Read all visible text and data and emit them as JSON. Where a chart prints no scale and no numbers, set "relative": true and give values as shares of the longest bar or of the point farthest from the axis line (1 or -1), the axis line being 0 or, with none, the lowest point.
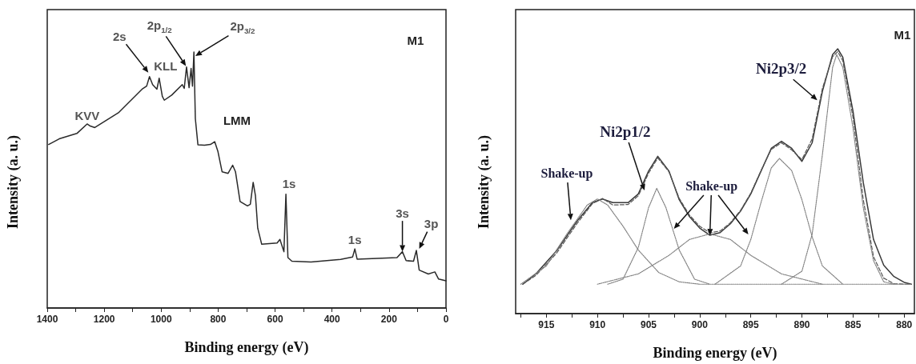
{
  "chart_data": [
    {
      "type": "line",
      "xlabel": "Binding energy (eV)",
      "ylabel": "Intensity (a. u.)",
      "relative": true,
      "marker": "none",
      "line_style": "solid",
      "xlim": [
        1400,
        0
      ],
      "xticks": [
        1400,
        {
          "value": 1300,
          "label": null
        },
        1200,
        {
          "value": 1100,
          "label": null
        },
        1000,
        {
          "value": 900,
          "label": null
        },
        800,
        {
          "value": 700,
          "label": null
        },
        600,
        {
          "value": 500,
          "label": null
        },
        400,
        {
          "value": 300,
          "label": null
        },
        200,
        {
          "value": 100,
          "label": null
        },
        0
      ],
      "x": [
        1395,
        1358,
        1296,
        1260,
        1249,
        1233,
        1150,
        1067,
        1051,
        1041,
        1030,
        1015,
        1007,
        996,
        989,
        963,
        926,
        919,
        911,
        902,
        895,
        890,
        885,
        880,
        871,
        848,
        827,
        812,
        801,
        786,
        765,
        749,
        739,
        723,
        697,
        687,
        677,
        669,
        661,
        647,
        593,
        583,
        569,
        562,
        555,
        541,
        474,
        370,
        328,
        320,
        312,
        172,
        153,
        140,
        114,
        104,
        94,
        62,
        39,
        26,
        0
      ],
      "series": [
        {
          "color": "#2a2a2a",
          "values": [
            0.639,
            0.661,
            0.682,
            0.719,
            0.711,
            0.705,
            0.763,
            0.855,
            0.867,
            0.904,
            0.873,
            0.855,
            0.898,
            0.827,
            0.812,
            0.832,
            0.873,
            0.858,
            0.942,
            0.861,
            0.936,
            0.867,
            1.0,
            0.74,
            0.638,
            0.636,
            0.639,
            0.65,
            0.613,
            0.532,
            0.526,
            0.558,
            0.532,
            0.416,
            0.399,
            0.405,
            0.491,
            0.439,
            0.312,
            0.249,
            0.254,
            0.268,
            0.22,
            0.445,
            0.197,
            0.183,
            0.18,
            0.19,
            0.199,
            0.231,
            0.191,
            0.197,
            0.22,
            0.185,
            0.183,
            0.225,
            0.148,
            0.133,
            0.141,
            0.113,
            0.106
          ]
        }
      ],
      "annotations": [
        {
          "text": "2s",
          "x": 1045,
          "y": 0.92
        },
        {
          "text": "KLL",
          "x": 1007,
          "y": 0.898
        },
        {
          "text": "2p$_{1/2}$",
          "x": 913,
          "y": 0.946
        },
        {
          "text": "2p$_{3/2}$",
          "x": 880,
          "y": 0.985
        },
        {
          "text": "KVV",
          "x": 1260,
          "y": 0.719
        },
        "LMM",
        {
          "text": "1s",
          "x": 562,
          "y": 0.445
        },
        {
          "text": "1s",
          "x": 320,
          "y": 0.231
        },
        {
          "text": "3s",
          "x": 153,
          "y": 0.22
        },
        {
          "text": "3p",
          "x": 94,
          "y": 0.231
        },
        "M1"
      ]
    },
    {
      "type": "line",
      "xlabel": "Binding energy (eV)",
      "ylabel": "Intensity (a. u.)",
      "relative": true,
      "marker": "none",
      "xlim": [
        918,
        879
      ],
      "xticks": [
        {
          "value": 917.5,
          "label": null
        },
        915,
        {
          "value": 912.5,
          "label": null
        },
        910,
        {
          "value": 907.5,
          "label": null
        },
        905,
        {
          "value": 902.5,
          "label": null
        },
        900,
        {
          "value": 897.5,
          "label": null
        },
        895,
        {
          "value": 892.5,
          "label": null
        },
        890,
        {
          "value": 887.5,
          "label": null
        },
        885,
        {
          "value": 882.5,
          "label": null
        },
        880
      ],
      "series": [
        {
          "color": "#3a3a3a",
          "line_style": "solid",
          "x": [
            917.3,
            916,
            914,
            912,
            910.5,
            909.5,
            908.5,
            907,
            906,
            905,
            904.1,
            903,
            902,
            901,
            900,
            899,
            898,
            897,
            896,
            895,
            894,
            893,
            892,
            891,
            890,
            889,
            888,
            887,
            886.5,
            886,
            885,
            884,
            883,
            882,
            881,
            880,
            879.3
          ],
          "values": [
            0.111,
            0.151,
            0.237,
            0.349,
            0.419,
            0.433,
            0.419,
            0.419,
            0.452,
            0.538,
            0.594,
            0.538,
            0.43,
            0.366,
            0.323,
            0.296,
            0.306,
            0.339,
            0.387,
            0.452,
            0.538,
            0.624,
            0.651,
            0.624,
            0.575,
            0.645,
            0.839,
            0.978,
            1.0,
            0.968,
            0.763,
            0.495,
            0.28,
            0.183,
            0.14,
            0.118,
            0.111
          ]
        },
        {
          "color": "#555555",
          "line_style": "dashed",
          "x": [
            917.3,
            916,
            914,
            912,
            910.5,
            909.5,
            908.5,
            907,
            906,
            905,
            904.1,
            903,
            902,
            901,
            900,
            899,
            898,
            897,
            896,
            895,
            894,
            893,
            892,
            891,
            890,
            889,
            888,
            887,
            886.5,
            886,
            885,
            884,
            883,
            882,
            881,
            880,
            879.3
          ],
          "values": [
            0.111,
            0.145,
            0.228,
            0.34,
            0.415,
            0.435,
            0.41,
            0.412,
            0.445,
            0.53,
            0.588,
            0.535,
            0.435,
            0.372,
            0.33,
            0.305,
            0.312,
            0.343,
            0.39,
            0.455,
            0.54,
            0.62,
            0.645,
            0.618,
            0.582,
            0.66,
            0.85,
            0.97,
            0.989,
            0.955,
            0.74,
            0.43,
            0.215,
            0.134,
            0.113,
            0.111,
            0.111
          ]
        },
        {
          "color": "#808080",
          "line_style": "dotted",
          "x": [
            917.5,
            915,
            913,
            911,
            910,
            909,
            907.5,
            906,
            904,
            902,
            900,
            879.3
          ],
          "values": [
            0.111,
            0.18,
            0.3,
            0.41,
            0.433,
            0.41,
            0.33,
            0.24,
            0.155,
            0.12,
            0.111,
            0.111
          ]
        },
        {
          "color": "#808080",
          "line_style": "dotted",
          "x": [
            909,
            907.5,
            906,
            905,
            904.2,
            903.3,
            902,
            900.5,
            899
          ],
          "values": [
            0.111,
            0.13,
            0.25,
            0.4,
            0.473,
            0.4,
            0.24,
            0.13,
            0.111
          ]
        },
        {
          "color": "#808080",
          "line_style": "dotted",
          "x": [
            910,
            906,
            903,
            901,
            899,
            897,
            895,
            892,
            888
          ],
          "values": [
            0.111,
            0.15,
            0.22,
            0.28,
            0.301,
            0.28,
            0.22,
            0.15,
            0.111
          ]
        },
        {
          "color": "#808080",
          "line_style": "dotted",
          "x": [
            898.5,
            896,
            895,
            894,
            893,
            892.2,
            891,
            890,
            889,
            888,
            886
          ],
          "values": [
            0.111,
            0.18,
            0.28,
            0.42,
            0.55,
            0.586,
            0.54,
            0.43,
            0.29,
            0.18,
            0.111
          ]
        },
        {
          "color": "#808080",
          "line_style": "dotted",
          "x": [
            892,
            890,
            889,
            888,
            887,
            886.6,
            886,
            885,
            884,
            883,
            882,
            881
          ],
          "values": [
            0.111,
            0.16,
            0.3,
            0.6,
            0.93,
            0.978,
            0.93,
            0.7,
            0.4,
            0.2,
            0.12,
            0.111
          ]
        }
      ],
      "annotations": [
        {
          "text": "Shake-up",
          "x": 912.6,
          "y": 0.353
        },
        {
          "text": "Ni2p1/2",
          "x": 905.4,
          "y": 0.465
        },
        {
          "text": "Shake-up",
          "x": 899,
          "y": 0.296
        },
        {
          "text": "Ni2p3/2",
          "x": 888.5,
          "y": 0.806
        },
        "M1"
      ]
    }
  ]
}
